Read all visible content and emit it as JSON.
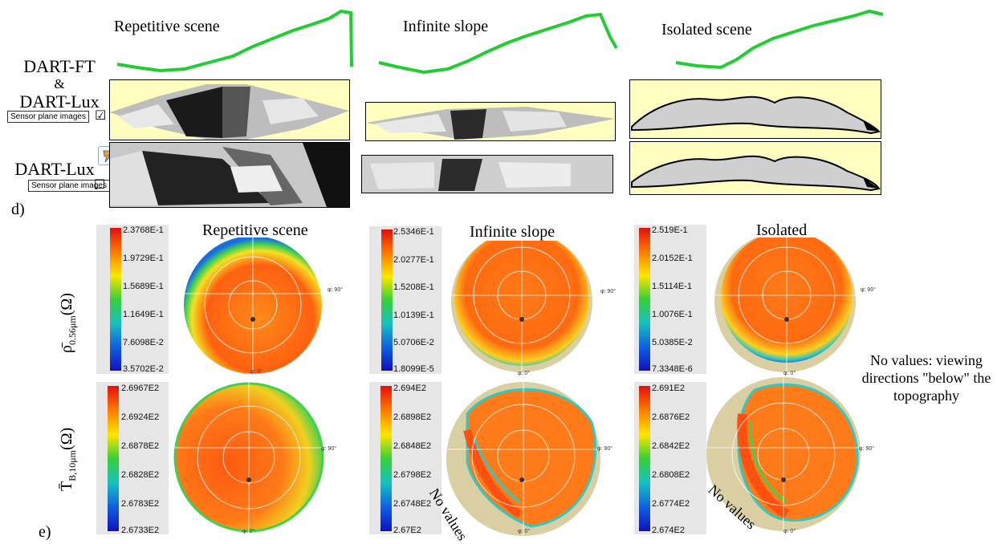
{
  "scenes": [
    {
      "key": "repetitive",
      "top_title": "Repetitive scene",
      "bottom_title": "Repetitive scene"
    },
    {
      "key": "infinite",
      "top_title": "Infinite slope",
      "bottom_title": "Infinite slope"
    },
    {
      "key": "isolated",
      "top_title": "Isolated scene",
      "bottom_title": "Isolated"
    }
  ],
  "rows": {
    "dartft_label_1": "DART-FT",
    "dartft_amp": "&",
    "dartft_label_2": "DART-Lux",
    "dartlux_label": "DART-Lux",
    "sensor_button": "Sensor plane images",
    "sensor_checked": "☑",
    "sensor_unchecked": "☐"
  },
  "panel_labels": {
    "d": "d)",
    "e": "e)"
  },
  "y_labels": {
    "reflectance_main": "ρ̄",
    "reflectance_sub": "0.56μm",
    "reflectance_tail": "(Ω)",
    "temperature_main": "T̄",
    "temperature_sub": "B,10μm",
    "temperature_tail": "(Ω)"
  },
  "colorbars": {
    "reflectance": [
      [
        "2.3768E-1",
        "1.9729E-1",
        "1.5689E-1",
        "1.1649E-1",
        "7.6098E-2",
        "3.5702E-2"
      ],
      [
        "2.5346E-1",
        "2.0277E-1",
        "1.5208E-1",
        "1.0139E-1",
        "5.0706E-2",
        "1.8099E-5"
      ],
      [
        "2.519E-1",
        "2.0152E-1",
        "1.5114E-1",
        "1.0076E-1",
        "5.0385E-2",
        "7.3348E-6"
      ]
    ],
    "temperature": [
      [
        "2.6967E2",
        "2.6924E2",
        "2.6878E2",
        "2.6828E2",
        "2.6783E2",
        "2.6733E2"
      ],
      [
        "2.694E2",
        "2.6898E2",
        "2.6848E2",
        "2.6798E2",
        "2.6748E2",
        "2.67E2"
      ],
      [
        "2.691E2",
        "2.6876E2",
        "2.6842E2",
        "2.6808E2",
        "2.6774E2",
        "2.674E2"
      ]
    ]
  },
  "polar_labels": {
    "phi_90": "φ: 90°",
    "phi_0": "φ: 0°"
  },
  "annotations": {
    "no_values": "No values",
    "note": "No values: viewing directions \"below\" the topography"
  },
  "colors": {
    "green_profile": "#22cc33",
    "panel_bg": "#ffffc0",
    "disk_hot": "#ff5a10",
    "disk_warm": "#ffa020",
    "disk_edge": "#2a7ae0",
    "no_value": "#d9cfa2"
  }
}
